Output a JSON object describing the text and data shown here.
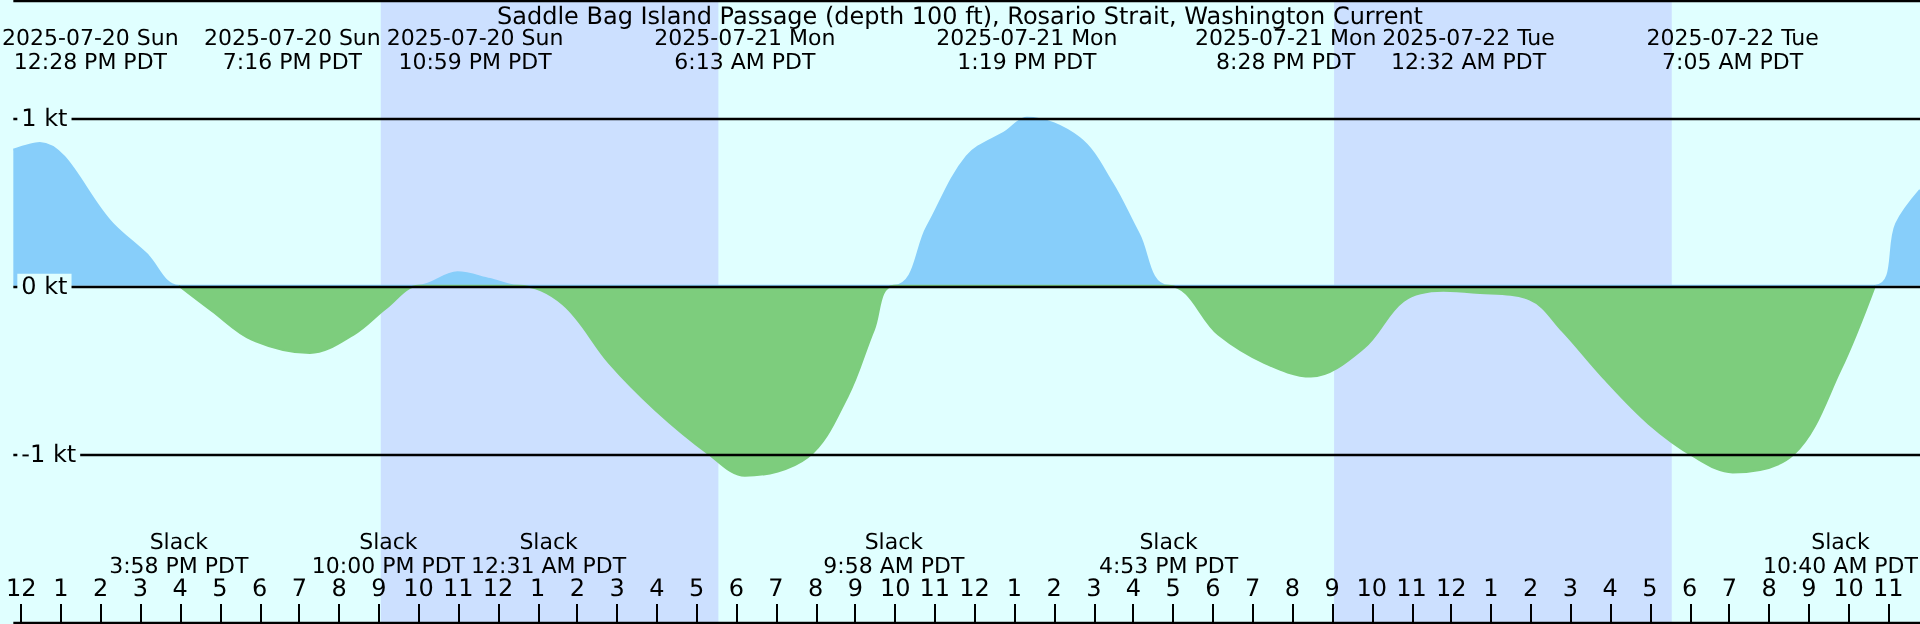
{
  "chart_data": {
    "type": "area",
    "title": "Saddle Bag Island Passage (depth 100 ft), Rosario Strait, Washington Current",
    "xlim": [
      "2025-07-20T11:48",
      "2025-07-22T11:48"
    ],
    "xticks": [
      {
        "value": "2025-07-20T12:00",
        "label": "12"
      },
      {
        "value": "2025-07-20T13:00",
        "label": "1"
      },
      {
        "value": "2025-07-20T14:00",
        "label": "2"
      },
      {
        "value": "2025-07-20T15:00",
        "label": "3"
      },
      {
        "value": "2025-07-20T16:00",
        "label": "4"
      },
      {
        "value": "2025-07-20T17:00",
        "label": "5"
      },
      {
        "value": "2025-07-20T18:00",
        "label": "6"
      },
      {
        "value": "2025-07-20T19:00",
        "label": "7"
      },
      {
        "value": "2025-07-20T20:00",
        "label": "8"
      },
      {
        "value": "2025-07-20T21:00",
        "label": "9"
      },
      {
        "value": "2025-07-20T22:00",
        "label": "10"
      },
      {
        "value": "2025-07-20T23:00",
        "label": "11"
      },
      {
        "value": "2025-07-21T00:00",
        "label": "12"
      },
      {
        "value": "2025-07-21T01:00",
        "label": "1"
      },
      {
        "value": "2025-07-21T02:00",
        "label": "2"
      },
      {
        "value": "2025-07-21T03:00",
        "label": "3"
      },
      {
        "value": "2025-07-21T04:00",
        "label": "4"
      },
      {
        "value": "2025-07-21T05:00",
        "label": "5"
      },
      {
        "value": "2025-07-21T06:00",
        "label": "6"
      },
      {
        "value": "2025-07-21T07:00",
        "label": "7"
      },
      {
        "value": "2025-07-21T08:00",
        "label": "8"
      },
      {
        "value": "2025-07-21T09:00",
        "label": "9"
      },
      {
        "value": "2025-07-21T10:00",
        "label": "10"
      },
      {
        "value": "2025-07-21T11:00",
        "label": "11"
      },
      {
        "value": "2025-07-21T12:00",
        "label": "12"
      },
      {
        "value": "2025-07-21T13:00",
        "label": "1"
      },
      {
        "value": "2025-07-21T14:00",
        "label": "2"
      },
      {
        "value": "2025-07-21T15:00",
        "label": "3"
      },
      {
        "value": "2025-07-21T16:00",
        "label": "4"
      },
      {
        "value": "2025-07-21T17:00",
        "label": "5"
      },
      {
        "value": "2025-07-21T18:00",
        "label": "6"
      },
      {
        "value": "2025-07-21T19:00",
        "label": "7"
      },
      {
        "value": "2025-07-21T20:00",
        "label": "8"
      },
      {
        "value": "2025-07-21T21:00",
        "label": "9"
      },
      {
        "value": "2025-07-21T22:00",
        "label": "10"
      },
      {
        "value": "2025-07-21T23:00",
        "label": "11"
      },
      {
        "value": "2025-07-22T00:00",
        "label": "12"
      },
      {
        "value": "2025-07-22T01:00",
        "label": "1"
      },
      {
        "value": "2025-07-22T02:00",
        "label": "2"
      },
      {
        "value": "2025-07-22T03:00",
        "label": "3"
      },
      {
        "value": "2025-07-22T04:00",
        "label": "4"
      },
      {
        "value": "2025-07-22T05:00",
        "label": "5"
      },
      {
        "value": "2025-07-22T06:00",
        "label": "6"
      },
      {
        "value": "2025-07-22T07:00",
        "label": "7"
      },
      {
        "value": "2025-07-22T08:00",
        "label": "8"
      },
      {
        "value": "2025-07-22T09:00",
        "label": "9"
      },
      {
        "value": "2025-07-22T10:00",
        "label": "10"
      },
      {
        "value": "2025-07-22T11:00",
        "label": "11"
      }
    ],
    "ylim": [
      -2,
      1.7
    ],
    "yticks": [
      {
        "value": 1,
        "label": "1 kt"
      },
      {
        "value": 0,
        "label": "0 kt"
      },
      {
        "value": -1,
        "label": "-1 kt"
      }
    ],
    "grid": "y",
    "series": [
      {
        "color": "#87cefa",
        "x": [
          "2025-07-20T11:48",
          "2025-07-20T12:28",
          "2025-07-20T14:18",
          "2025-07-20T15:09",
          "2025-07-20T15:58",
          "2025-07-20T22:00",
          "2025-07-20T22:59",
          "2025-07-20T23:48",
          "2025-07-21T00:31",
          "2025-07-21T09:58",
          "2025-07-21T10:48",
          "2025-07-21T11:48",
          "2025-07-21T12:48",
          "2025-07-21T13:19",
          "2025-07-21T14:38",
          "2025-07-21T15:28",
          "2025-07-21T16:08",
          "2025-07-21T16:53",
          "2025-07-22T10:40",
          "2025-07-22T11:12",
          "2025-07-22T11:48"
        ],
        "values": [
          0.81,
          0.85,
          0.37,
          0.19,
          0,
          0,
          0.08,
          0.04,
          0,
          0,
          0.35,
          0.77,
          0.92,
          1.0,
          0.88,
          0.61,
          0.31,
          0,
          0,
          0.37,
          0.57
        ]
      },
      {
        "color": "#7dcd7d",
        "x": [
          "2025-07-20T15:58",
          "2025-07-20T16:48",
          "2025-07-20T17:48",
          "2025-07-20T19:16",
          "2025-07-20T20:22",
          "2025-07-20T21:12",
          "2025-07-20T22:00",
          "2025-07-21T00:31",
          "2025-07-21T01:38",
          "2025-07-21T02:48",
          "2025-07-21T03:58",
          "2025-07-21T05:18",
          "2025-07-21T06:13",
          "2025-07-21T07:48",
          "2025-07-21T08:48",
          "2025-07-21T09:28",
          "2025-07-21T09:58",
          "2025-07-21T16:53",
          "2025-07-21T18:08",
          "2025-07-21T19:18",
          "2025-07-21T20:28",
          "2025-07-21T21:48",
          "2025-07-21T22:48",
          "2025-07-21T23:48",
          "2025-07-22T00:32",
          "2025-07-22T01:58",
          "2025-07-22T02:48",
          "2025-07-22T03:48",
          "2025-07-22T04:58",
          "2025-07-22T06:08",
          "2025-07-22T07:05",
          "2025-07-22T08:38",
          "2025-07-22T09:48",
          "2025-07-22T10:40"
        ],
        "values": [
          0,
          -0.15,
          -0.32,
          -0.4,
          -0.29,
          -0.13,
          0,
          0,
          -0.11,
          -0.46,
          -0.74,
          -1.0,
          -1.13,
          -1.02,
          -0.66,
          -0.26,
          0,
          0,
          -0.29,
          -0.46,
          -0.54,
          -0.37,
          -0.09,
          -0.03,
          -0.04,
          -0.08,
          -0.27,
          -0.54,
          -0.82,
          -1.02,
          -1.11,
          -1.0,
          -0.5,
          0
        ]
      }
    ],
    "bands": [
      {
        "axis": "x",
        "from": "2025-07-20T21:03",
        "to": "2025-07-21T05:33",
        "color": "#cce0ff"
      },
      {
        "axis": "x",
        "from": "2025-07-21T21:03",
        "to": "2025-07-22T05:33",
        "color": "#cce0ff"
      }
    ],
    "annotations": [
      "2025-07-20 Sun\n12:28 PM PDT",
      "2025-07-20 Sun\n7:16 PM PDT",
      "2025-07-20 Sun\n10:59 PM PDT",
      "2025-07-21 Mon\n6:13 AM PDT",
      "2025-07-21 Mon\n1:19 PM PDT",
      "2025-07-21 Mon\n8:28 PM PDT",
      "2025-07-22 Tue\n12:32 AM PDT",
      "2025-07-22 Tue\n7:05 AM PDT",
      "Slack\n3:58 PM PDT",
      "Slack\n10:00 PM PDT",
      "Slack\n12:31 AM PDT",
      "Slack\n9:58 AM PDT",
      "Slack\n4:53 PM PDT",
      "Slack\n10:40 AM PDT"
    ]
  }
}
